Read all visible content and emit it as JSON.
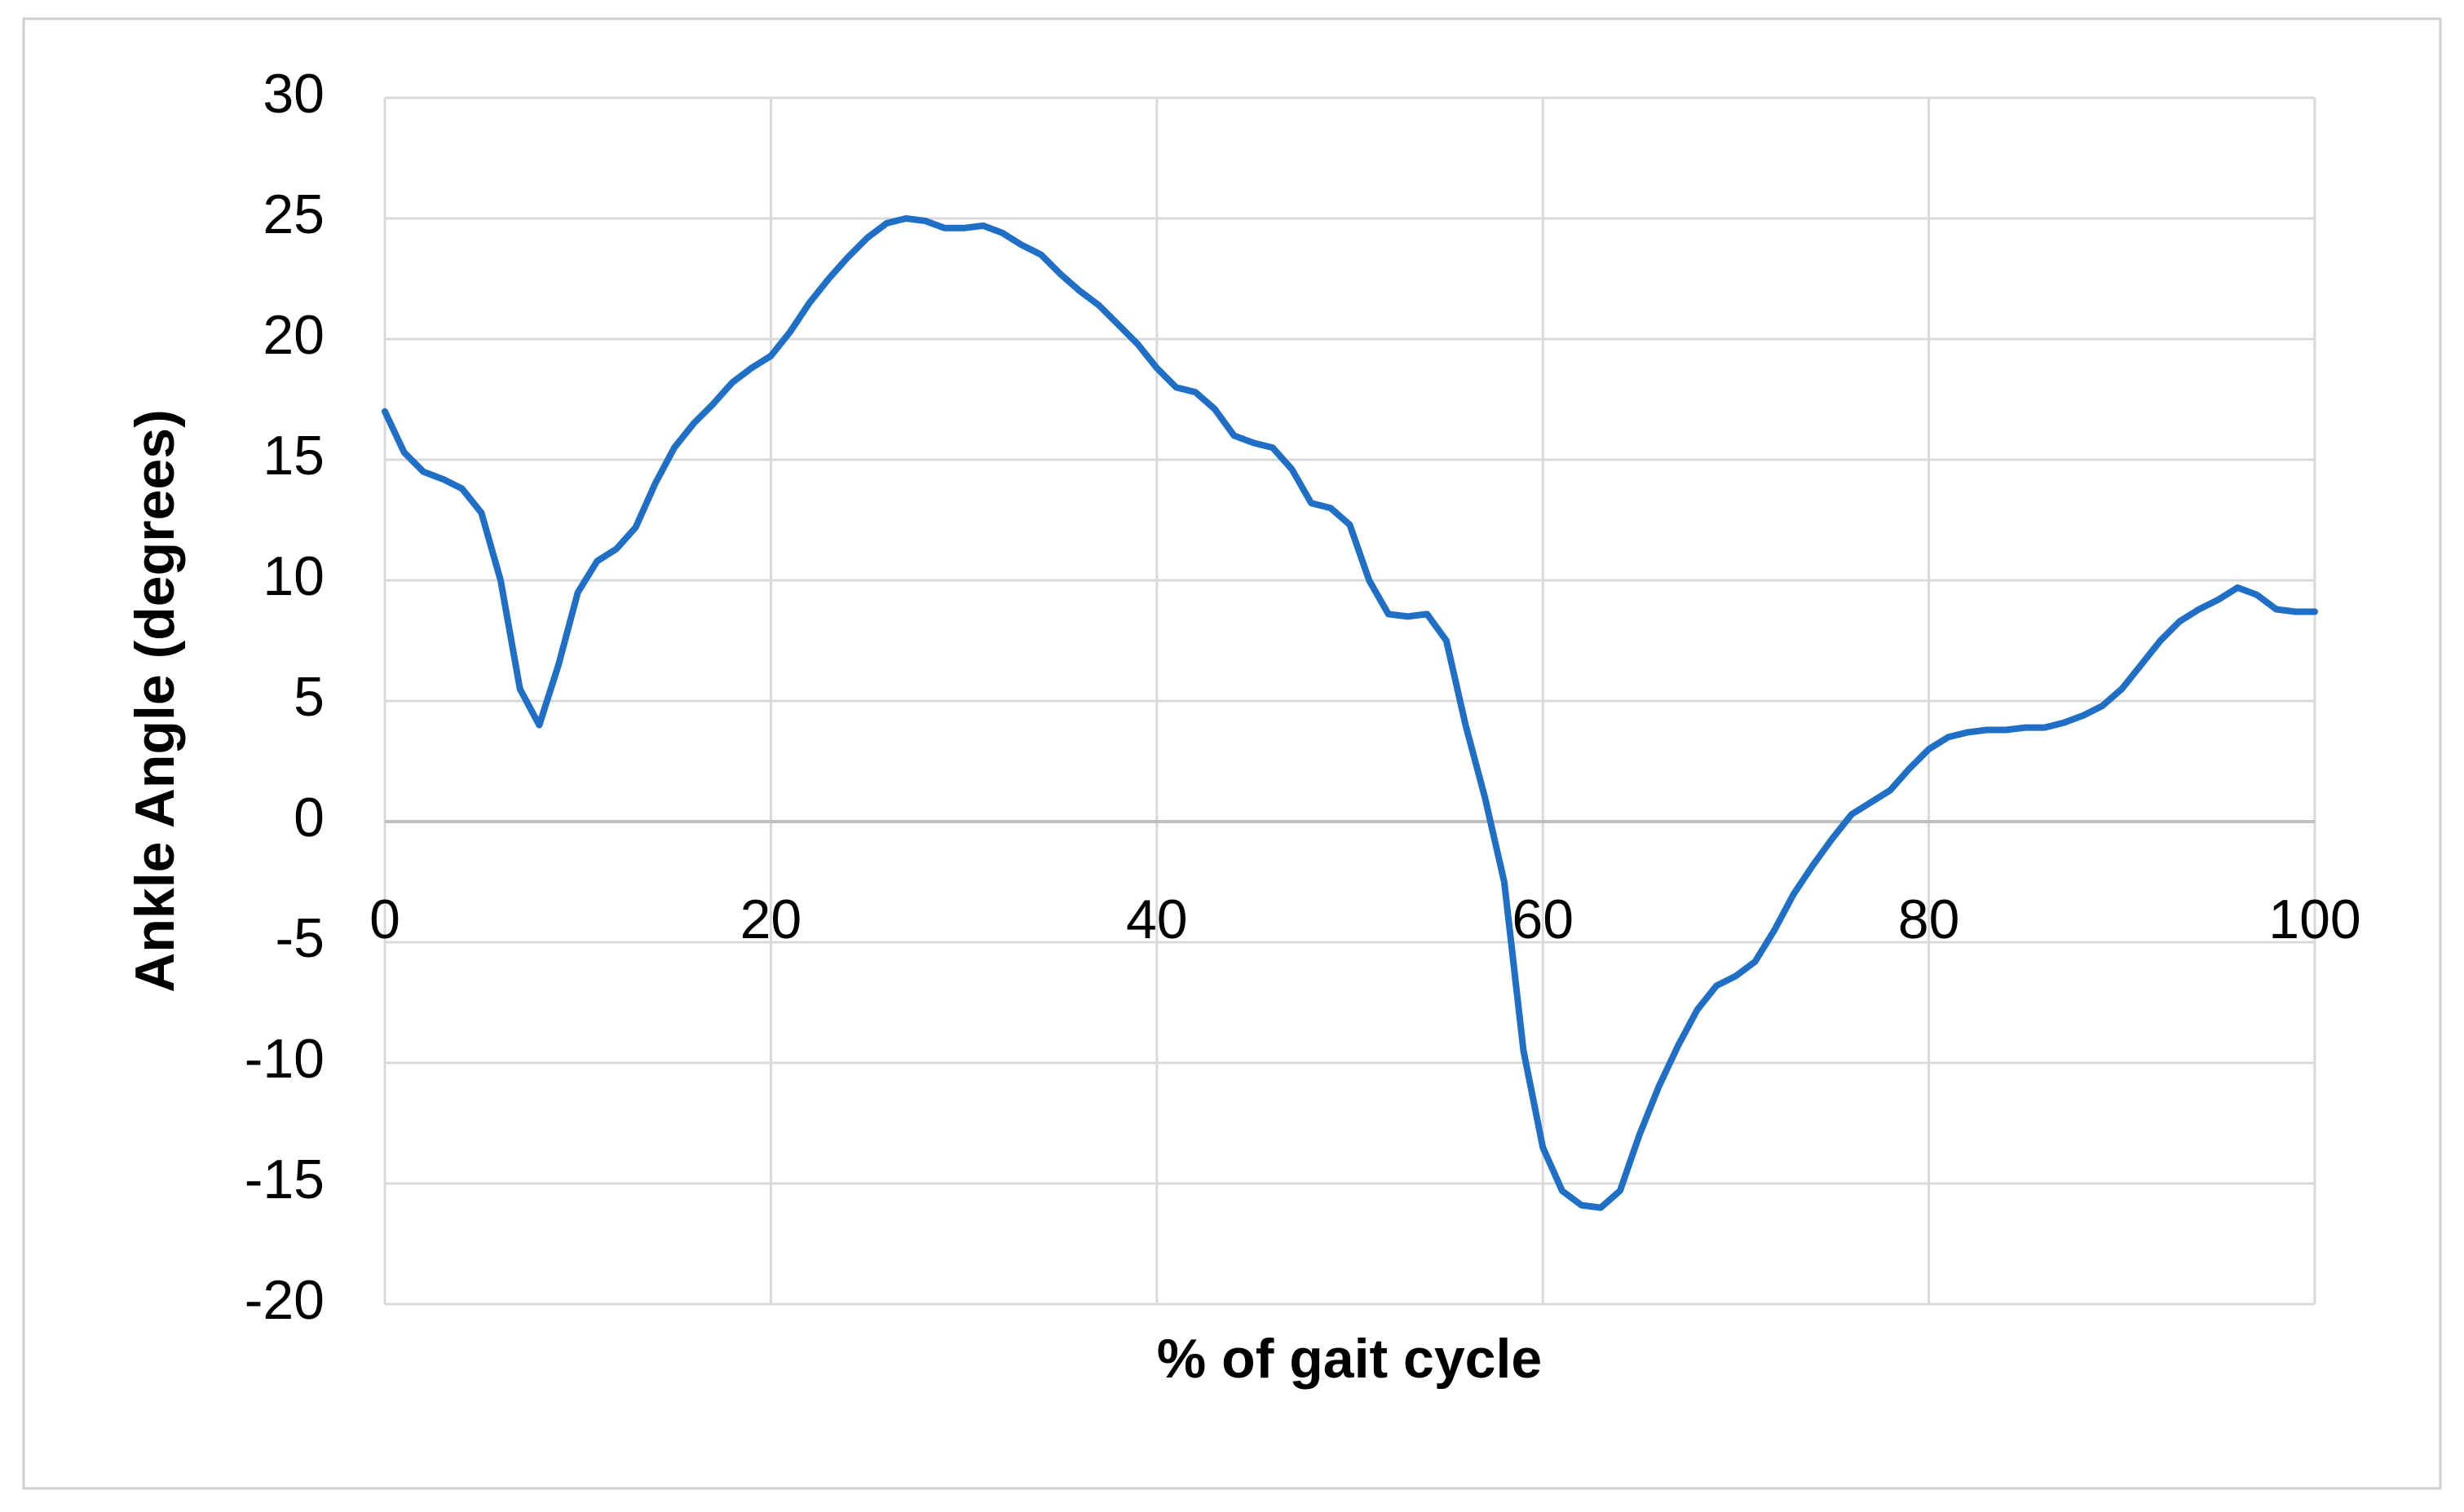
{
  "chart_data": {
    "type": "line",
    "xlabel": "% of gait cycle",
    "ylabel": "Ankle Angle (degrees)",
    "x": [
      0,
      1,
      2,
      3,
      4,
      5,
      6,
      7,
      8,
      9,
      10,
      11,
      12,
      13,
      14,
      15,
      16,
      17,
      18,
      19,
      20,
      21,
      22,
      23,
      24,
      25,
      26,
      27,
      28,
      29,
      30,
      31,
      32,
      33,
      34,
      35,
      36,
      37,
      38,
      39,
      40,
      41,
      42,
      43,
      44,
      45,
      46,
      47,
      48,
      49,
      50,
      51,
      52,
      53,
      54,
      55,
      56,
      57,
      58,
      59,
      60,
      61,
      62,
      63,
      64,
      65,
      66,
      67,
      68,
      69,
      70,
      71,
      72,
      73,
      74,
      75,
      76,
      77,
      78,
      79,
      80,
      81,
      82,
      83,
      84,
      85,
      86,
      87,
      88,
      89,
      90,
      91,
      92,
      93,
      94,
      95,
      96,
      97,
      98,
      99,
      100
    ],
    "series": [
      {
        "color": "#1f6fc6",
        "values": [
          17,
          15.3,
          14.5,
          14.2,
          13.8,
          12.8,
          10,
          5.5,
          4,
          6.5,
          9.5,
          10.8,
          11.3,
          12.2,
          14,
          15.5,
          16.5,
          17.3,
          18.2,
          18.8,
          19.3,
          20.3,
          21.5,
          22.5,
          23.4,
          24.2,
          24.8,
          25,
          24.9,
          24.6,
          24.6,
          24.7,
          24.4,
          23.9,
          23.5,
          22.7,
          22,
          21.4,
          20.6,
          19.8,
          18.8,
          18,
          17.8,
          17.1,
          16,
          15.7,
          15.5,
          14.6,
          13.2,
          13,
          12.3,
          10,
          8.6,
          8.5,
          8.6,
          7.5,
          4,
          1,
          -2.5,
          -9.5,
          -13.5,
          -15.3,
          -15.9,
          -16,
          -15.3,
          -13,
          -11,
          -9.3,
          -7.8,
          -6.8,
          -6.4,
          -5.8,
          -4.5,
          -3,
          -1.8,
          -0.7,
          0.3,
          0.8,
          1.3,
          2.2,
          3,
          3.5,
          3.7,
          3.8,
          3.8,
          3.9,
          3.9,
          4.1,
          4.4,
          4.8,
          5.5,
          6.5,
          7.5,
          8.3,
          8.8,
          9.2,
          9.7,
          9.4,
          8.8,
          8.7,
          8.7
        ]
      }
    ],
    "xlim": [
      0,
      100
    ],
    "xticks": [
      0,
      20,
      40,
      60,
      80,
      100
    ],
    "ylim": [
      -20,
      30
    ],
    "yticks": [
      -20,
      -15,
      -10,
      -5,
      0,
      5,
      10,
      15,
      20,
      25,
      30
    ],
    "grid": true
  }
}
